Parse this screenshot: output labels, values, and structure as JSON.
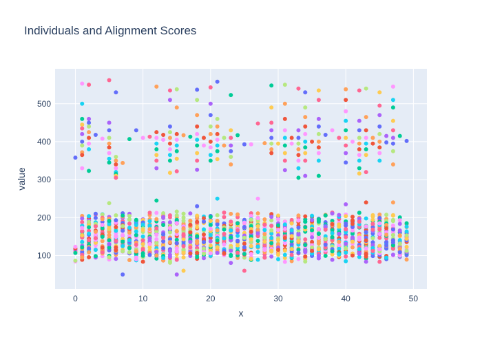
{
  "chart_data": {
    "type": "scatter",
    "title": "Individuals and Alignment Scores",
    "xlabel": "x",
    "ylabel": "value",
    "xlim": [
      -3,
      52
    ],
    "ylim": [
      12,
      592
    ],
    "x_ticks": [
      0,
      10,
      20,
      30,
      40,
      50
    ],
    "y_ticks": [
      100,
      200,
      300,
      400,
      500
    ],
    "grid": true,
    "legend": "none",
    "background": "#e5ecf6",
    "series_colors": [
      "#636efa",
      "#ef553b",
      "#00cc96",
      "#ab63fa",
      "#ffa15a",
      "#19d3f3",
      "#ff6692",
      "#b6e880",
      "#ff97ff",
      "#fecb52"
    ],
    "upper_points": [
      [
        0,
        358
      ],
      [
        1,
        553
      ],
      [
        1,
        500
      ],
      [
        1,
        460
      ],
      [
        1,
        445
      ],
      [
        1,
        435
      ],
      [
        1,
        420
      ],
      [
        1,
        400
      ],
      [
        1,
        390
      ],
      [
        1,
        372
      ],
      [
        1,
        365
      ],
      [
        1,
        330
      ],
      [
        2,
        550
      ],
      [
        2,
        460
      ],
      [
        2,
        450
      ],
      [
        2,
        440
      ],
      [
        2,
        425
      ],
      [
        2,
        410
      ],
      [
        2,
        395
      ],
      [
        2,
        380
      ],
      [
        2,
        323
      ],
      [
        3,
        418
      ],
      [
        4,
        408
      ],
      [
        5,
        562
      ],
      [
        5,
        450
      ],
      [
        5,
        430
      ],
      [
        5,
        410
      ],
      [
        5,
        395
      ],
      [
        5,
        385
      ],
      [
        5,
        370
      ],
      [
        5,
        355
      ],
      [
        5,
        345
      ],
      [
        6,
        530
      ],
      [
        6,
        360
      ],
      [
        6,
        350
      ],
      [
        6,
        340
      ],
      [
        6,
        330
      ],
      [
        6,
        320
      ],
      [
        6,
        315
      ],
      [
        6,
        310
      ],
      [
        6,
        305
      ],
      [
        7,
        344
      ],
      [
        8,
        407
      ],
      [
        9,
        430
      ],
      [
        10,
        410
      ],
      [
        11,
        413
      ],
      [
        12,
        545
      ],
      [
        12,
        425
      ],
      [
        12,
        410
      ],
      [
        12,
        395
      ],
      [
        12,
        380
      ],
      [
        12,
        365
      ],
      [
        12,
        350
      ],
      [
        12,
        330
      ],
      [
        13,
        418
      ],
      [
        13,
        405
      ],
      [
        14,
        535
      ],
      [
        14,
        510
      ],
      [
        14,
        440
      ],
      [
        14,
        425
      ],
      [
        14,
        410
      ],
      [
        14,
        395
      ],
      [
        14,
        380
      ],
      [
        14,
        365
      ],
      [
        14,
        350
      ],
      [
        14,
        318
      ],
      [
        15,
        538
      ],
      [
        15,
        490
      ],
      [
        15,
        420
      ],
      [
        15,
        405
      ],
      [
        15,
        390
      ],
      [
        15,
        375
      ],
      [
        15,
        355
      ],
      [
        15,
        322
      ],
      [
        16,
        417
      ],
      [
        17,
        413
      ],
      [
        18,
        537
      ],
      [
        18,
        510
      ],
      [
        18,
        470
      ],
      [
        18,
        440
      ],
      [
        18,
        420
      ],
      [
        18,
        405
      ],
      [
        18,
        390
      ],
      [
        18,
        370
      ],
      [
        18,
        350
      ],
      [
        18,
        326
      ],
      [
        19,
        410
      ],
      [
        19,
        390
      ],
      [
        20,
        543
      ],
      [
        20,
        500
      ],
      [
        20,
        470
      ],
      [
        20,
        440
      ],
      [
        20,
        420
      ],
      [
        20,
        400
      ],
      [
        20,
        385
      ],
      [
        20,
        365
      ],
      [
        20,
        350
      ],
      [
        21,
        558
      ],
      [
        21,
        460
      ],
      [
        21,
        440
      ],
      [
        21,
        420
      ],
      [
        21,
        405
      ],
      [
        21,
        390
      ],
      [
        21,
        375
      ],
      [
        21,
        354
      ],
      [
        22,
        410
      ],
      [
        22,
        390
      ],
      [
        23,
        523
      ],
      [
        23,
        430
      ],
      [
        23,
        410
      ],
      [
        23,
        390
      ],
      [
        23,
        375
      ],
      [
        23,
        360
      ],
      [
        23,
        340
      ],
      [
        24,
        417
      ],
      [
        25,
        393
      ],
      [
        26,
        393
      ],
      [
        27,
        448
      ],
      [
        28,
        396
      ],
      [
        29,
        548
      ],
      [
        29,
        490
      ],
      [
        29,
        450
      ],
      [
        29,
        430
      ],
      [
        29,
        410
      ],
      [
        29,
        395
      ],
      [
        29,
        380
      ],
      [
        29,
        370
      ],
      [
        30,
        395
      ],
      [
        31,
        550
      ],
      [
        31,
        500
      ],
      [
        31,
        460
      ],
      [
        31,
        430
      ],
      [
        31,
        410
      ],
      [
        31,
        390
      ],
      [
        31,
        370
      ],
      [
        31,
        350
      ],
      [
        31,
        325
      ],
      [
        32,
        410
      ],
      [
        32,
        395
      ],
      [
        33,
        540
      ],
      [
        33,
        430
      ],
      [
        33,
        410
      ],
      [
        33,
        395
      ],
      [
        33,
        380
      ],
      [
        33,
        365
      ],
      [
        33,
        350
      ],
      [
        33,
        330
      ],
      [
        33,
        305
      ],
      [
        34,
        530
      ],
      [
        34,
        490
      ],
      [
        34,
        465
      ],
      [
        34,
        440
      ],
      [
        34,
        420
      ],
      [
        34,
        400
      ],
      [
        34,
        385
      ],
      [
        34,
        370
      ],
      [
        34,
        350
      ],
      [
        34,
        310
      ],
      [
        35,
        400
      ],
      [
        36,
        535
      ],
      [
        36,
        510
      ],
      [
        36,
        460
      ],
      [
        36,
        440
      ],
      [
        36,
        420
      ],
      [
        36,
        400
      ],
      [
        36,
        385
      ],
      [
        36,
        370
      ],
      [
        36,
        350
      ],
      [
        36,
        310
      ],
      [
        37,
        418
      ],
      [
        38,
        430
      ],
      [
        39,
        410
      ],
      [
        40,
        538
      ],
      [
        40,
        510
      ],
      [
        40,
        480
      ],
      [
        40,
        455
      ],
      [
        40,
        430
      ],
      [
        40,
        410
      ],
      [
        40,
        390
      ],
      [
        40,
        370
      ],
      [
        40,
        345
      ],
      [
        41,
        400
      ],
      [
        42,
        535
      ],
      [
        42,
        455
      ],
      [
        42,
        430
      ],
      [
        42,
        410
      ],
      [
        42,
        395
      ],
      [
        42,
        380
      ],
      [
        42,
        365
      ],
      [
        42,
        350
      ],
      [
        42,
        330
      ],
      [
        42,
        316
      ],
      [
        43,
        540
      ],
      [
        43,
        465
      ],
      [
        43,
        430
      ],
      [
        43,
        410
      ],
      [
        43,
        395
      ],
      [
        43,
        380
      ],
      [
        43,
        365
      ],
      [
        43,
        320
      ],
      [
        44,
        410
      ],
      [
        44,
        395
      ],
      [
        45,
        530
      ],
      [
        45,
        495
      ],
      [
        45,
        470
      ],
      [
        45,
        440
      ],
      [
        45,
        420
      ],
      [
        45,
        400
      ],
      [
        45,
        385
      ],
      [
        45,
        370
      ],
      [
        45,
        350
      ],
      [
        46,
        415
      ],
      [
        46,
        398
      ],
      [
        47,
        545
      ],
      [
        47,
        510
      ],
      [
        47,
        490
      ],
      [
        47,
        455
      ],
      [
        47,
        430
      ],
      [
        47,
        410
      ],
      [
        47,
        395
      ],
      [
        47,
        375
      ],
      [
        47,
        340
      ],
      [
        48,
        415
      ],
      [
        49,
        402
      ]
    ],
    "lower_cluster": {
      "x": [
        0,
        49
      ],
      "base_lo": 95,
      "base_hi": 200,
      "jitter": 35,
      "points_per_x": 30,
      "outliers": [
        [
          7,
          50
        ],
        [
          15,
          50
        ],
        [
          25,
          60
        ],
        [
          16,
          60
        ],
        [
          12,
          245
        ],
        [
          21,
          250
        ],
        [
          27,
          250
        ],
        [
          43,
          240
        ],
        [
          47,
          240
        ],
        [
          5,
          238
        ],
        [
          18,
          230
        ],
        [
          40,
          235
        ]
      ]
    }
  }
}
